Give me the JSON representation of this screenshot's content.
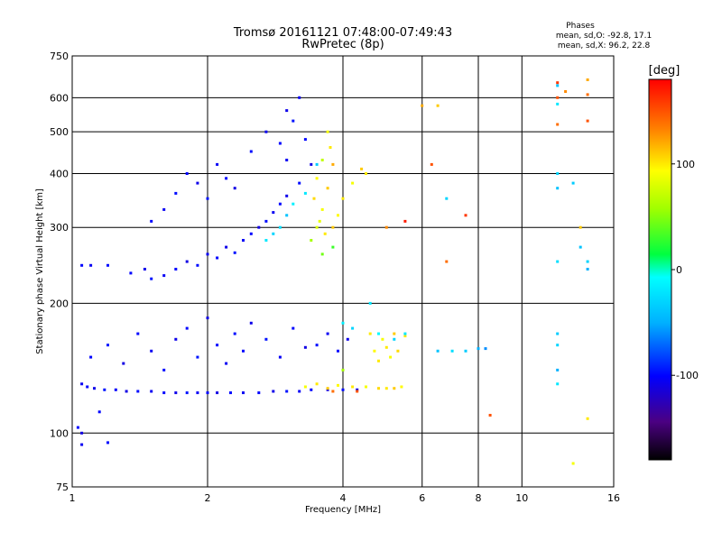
{
  "header": {
    "title": "Tromsø 20161121 07:48:00-07:49:43",
    "subtitle": "RwPretec (8p)",
    "stats_title": "Phases",
    "stats_o": "mean, sd,O: -92.8, 17.1",
    "stats_x": "mean, sd,X: 96.2, 22.8"
  },
  "chart_data": {
    "type": "scatter",
    "xlabel": "Frequency [MHz]",
    "ylabel": "Stationary phase Virtual Height [km]",
    "x_scale": "log",
    "y_scale": "log",
    "xlim": [
      1,
      16
    ],
    "ylim": [
      75,
      750
    ],
    "x_ticks": [
      1,
      2,
      4,
      6,
      8,
      10,
      16
    ],
    "x_tick_labels": [
      "1",
      "2",
      "4",
      "6",
      "8",
      "10",
      "16"
    ],
    "y_ticks": [
      75,
      100,
      200,
      300,
      400,
      500,
      600,
      750
    ],
    "y_tick_labels": [
      "75",
      "100",
      "200",
      "300",
      "400",
      "500",
      "600",
      "750"
    ],
    "grid": true,
    "colorbar": {
      "label": "[deg]",
      "range": [
        -180,
        180
      ],
      "ticks": [
        100,
        0,
        -100
      ],
      "tick_labels": [
        "100",
        "0",
        "-100"
      ],
      "colormap": "rainbow"
    },
    "series": [
      {
        "points": [
          [
            1.05,
            130,
            -105
          ],
          [
            1.08,
            128,
            -100
          ],
          [
            1.12,
            127,
            -108
          ],
          [
            1.18,
            126,
            -95
          ],
          [
            1.25,
            126,
            -102
          ],
          [
            1.32,
            125,
            -110
          ],
          [
            1.4,
            125,
            -98
          ],
          [
            1.5,
            125,
            -105
          ],
          [
            1.6,
            124,
            -100
          ],
          [
            1.7,
            124,
            -108
          ],
          [
            1.8,
            124,
            -96
          ],
          [
            1.9,
            124,
            -104
          ],
          [
            2.0,
            124,
            -100
          ],
          [
            2.1,
            124,
            -110
          ],
          [
            2.25,
            124,
            -98
          ],
          [
            2.4,
            124,
            -105
          ],
          [
            2.6,
            124,
            -100
          ],
          [
            2.8,
            125,
            -108
          ],
          [
            3.0,
            125,
            -96
          ],
          [
            3.2,
            125,
            -104
          ],
          [
            3.4,
            126,
            -100
          ],
          [
            3.7,
            126,
            -110
          ],
          [
            4.0,
            126,
            -98
          ],
          [
            4.3,
            126,
            -105
          ],
          [
            1.1,
            150,
            -100
          ],
          [
            1.2,
            160,
            -95
          ],
          [
            1.3,
            145,
            -110
          ],
          [
            1.4,
            170,
            -100
          ],
          [
            1.5,
            155,
            -105
          ],
          [
            1.6,
            140,
            -98
          ],
          [
            1.7,
            165,
            -108
          ],
          [
            1.8,
            175,
            -100
          ],
          [
            1.9,
            150,
            -95
          ],
          [
            2.0,
            185,
            -110
          ],
          [
            2.1,
            160,
            -100
          ],
          [
            2.2,
            145,
            -105
          ],
          [
            2.3,
            170,
            -98
          ],
          [
            2.4,
            155,
            -100
          ],
          [
            2.5,
            180,
            -108
          ],
          [
            2.7,
            165,
            -96
          ],
          [
            2.9,
            150,
            -104
          ],
          [
            3.1,
            175,
            -100
          ],
          [
            3.3,
            158,
            -110
          ],
          [
            3.5,
            160,
            -98
          ],
          [
            3.7,
            170,
            -105
          ],
          [
            3.9,
            155,
            -100
          ],
          [
            4.1,
            165,
            -108
          ],
          [
            1.05,
            245,
            -100
          ],
          [
            1.1,
            245,
            -105
          ],
          [
            1.2,
            245,
            -98
          ],
          [
            1.35,
            235,
            -100
          ],
          [
            1.45,
            240,
            -108
          ],
          [
            1.5,
            228,
            -96
          ],
          [
            1.6,
            232,
            -104
          ],
          [
            1.7,
            240,
            -100
          ],
          [
            1.8,
            250,
            -110
          ],
          [
            1.9,
            245,
            -98
          ],
          [
            2.0,
            260,
            -105
          ],
          [
            2.1,
            255,
            -100
          ],
          [
            2.2,
            270,
            -108
          ],
          [
            2.3,
            262,
            -96
          ],
          [
            2.4,
            280,
            -104
          ],
          [
            2.5,
            290,
            -100
          ],
          [
            2.6,
            300,
            -110
          ],
          [
            2.7,
            310,
            -98
          ],
          [
            2.8,
            325,
            -105
          ],
          [
            2.9,
            340,
            -100
          ],
          [
            3.0,
            355,
            -108
          ],
          [
            1.5,
            310,
            -100
          ],
          [
            1.6,
            330,
            -105
          ],
          [
            1.7,
            360,
            -98
          ],
          [
            1.8,
            400,
            -100
          ],
          [
            1.9,
            380,
            -108
          ],
          [
            2.0,
            350,
            -96
          ],
          [
            2.1,
            420,
            -104
          ],
          [
            2.2,
            390,
            -100
          ],
          [
            2.3,
            370,
            -110
          ],
          [
            2.5,
            450,
            -98
          ],
          [
            2.7,
            500,
            -105
          ],
          [
            2.9,
            470,
            -100
          ],
          [
            3.0,
            560,
            -108
          ],
          [
            3.1,
            530,
            -96
          ],
          [
            3.2,
            600,
            -104
          ],
          [
            3.3,
            480,
            -100
          ],
          [
            3.4,
            420,
            -110
          ],
          [
            3.2,
            380,
            -98
          ],
          [
            3.0,
            430,
            -105
          ],
          [
            1.15,
            112,
            -100
          ],
          [
            1.05,
            100,
            -110
          ],
          [
            1.05,
            94,
            -105
          ],
          [
            1.2,
            95,
            -98
          ],
          [
            1.03,
            103,
            -100
          ]
        ]
      },
      {
        "points": [
          [
            3.4,
            280,
            60
          ],
          [
            3.5,
            300,
            80
          ],
          [
            3.6,
            330,
            90
          ],
          [
            3.7,
            370,
            110
          ],
          [
            3.8,
            420,
            120
          ],
          [
            3.75,
            460,
            100
          ],
          [
            3.7,
            500,
            90
          ],
          [
            3.6,
            430,
            70
          ],
          [
            3.5,
            390,
            95
          ],
          [
            3.45,
            350,
            105
          ],
          [
            3.55,
            310,
            85
          ],
          [
            3.65,
            290,
            100
          ],
          [
            3.8,
            300,
            110
          ],
          [
            3.9,
            320,
            95
          ],
          [
            4.0,
            350,
            100
          ],
          [
            4.2,
            380,
            90
          ],
          [
            4.4,
            410,
            110
          ],
          [
            4.5,
            400,
            100
          ],
          [
            3.3,
            128,
            90
          ],
          [
            3.5,
            130,
            100
          ],
          [
            3.7,
            127,
            110
          ],
          [
            3.9,
            129,
            95
          ],
          [
            4.2,
            128,
            100
          ],
          [
            4.5,
            128,
            90
          ],
          [
            4.8,
            127,
            105
          ],
          [
            5.0,
            127,
            100
          ],
          [
            5.2,
            127,
            110
          ],
          [
            5.4,
            128,
            95
          ],
          [
            4.6,
            170,
            100
          ],
          [
            4.9,
            165,
            90
          ],
          [
            5.2,
            170,
            110
          ],
          [
            5.5,
            168,
            100
          ],
          [
            4.7,
            155,
            95
          ],
          [
            5.0,
            158,
            100
          ],
          [
            5.3,
            155,
            105
          ],
          [
            4.8,
            147,
            100
          ],
          [
            5.1,
            150,
            90
          ],
          [
            6.0,
            575,
            120
          ],
          [
            6.5,
            575,
            110
          ],
          [
            3.8,
            125,
            140
          ],
          [
            4.3,
            125,
            150
          ],
          [
            5.0,
            300,
            130
          ],
          [
            6.3,
            420,
            150
          ],
          [
            4.0,
            140,
            60
          ],
          [
            3.6,
            260,
            45
          ],
          [
            3.8,
            270,
            30
          ],
          [
            12,
            650,
            160
          ],
          [
            12,
            600,
            150
          ],
          [
            12,
            520,
            140
          ],
          [
            12.5,
            620,
            130
          ],
          [
            14,
            660,
            120
          ],
          [
            14,
            610,
            140
          ],
          [
            14,
            530,
            150
          ],
          [
            13.5,
            300,
            110
          ],
          [
            13,
            85,
            90
          ],
          [
            14,
            108,
            100
          ],
          [
            8.5,
            110,
            150
          ],
          [
            7.5,
            320,
            160
          ],
          [
            6.8,
            250,
            140
          ],
          [
            5.5,
            310,
            170
          ]
        ]
      },
      {
        "points": [
          [
            2.7,
            280,
            -20
          ],
          [
            2.8,
            290,
            -30
          ],
          [
            2.9,
            300,
            -25
          ],
          [
            3.0,
            320,
            -40
          ],
          [
            3.1,
            340,
            -15
          ],
          [
            3.3,
            360,
            -20
          ],
          [
            3.5,
            420,
            -35
          ],
          [
            4.8,
            170,
            -10
          ],
          [
            5.2,
            165,
            -30
          ],
          [
            5.5,
            170,
            -20
          ],
          [
            6.5,
            155,
            -40
          ],
          [
            7.0,
            155,
            -25
          ],
          [
            7.5,
            155,
            -35
          ],
          [
            8.0,
            157,
            -50
          ],
          [
            8.3,
            157,
            -60
          ],
          [
            4.0,
            180,
            -15
          ],
          [
            4.2,
            175,
            -30
          ],
          [
            12,
            640,
            -40
          ],
          [
            12,
            580,
            -20
          ],
          [
            12,
            400,
            -30
          ],
          [
            12,
            370,
            -40
          ],
          [
            12,
            250,
            -25
          ],
          [
            12,
            170,
            -35
          ],
          [
            12,
            160,
            -30
          ],
          [
            12,
            140,
            -50
          ],
          [
            12,
            130,
            -20
          ],
          [
            14,
            250,
            -30
          ],
          [
            14,
            240,
            -50
          ],
          [
            13.5,
            270,
            -40
          ],
          [
            13,
            380,
            -35
          ],
          [
            6.8,
            350,
            -30
          ],
          [
            4.6,
            200,
            -20
          ]
        ]
      }
    ]
  }
}
